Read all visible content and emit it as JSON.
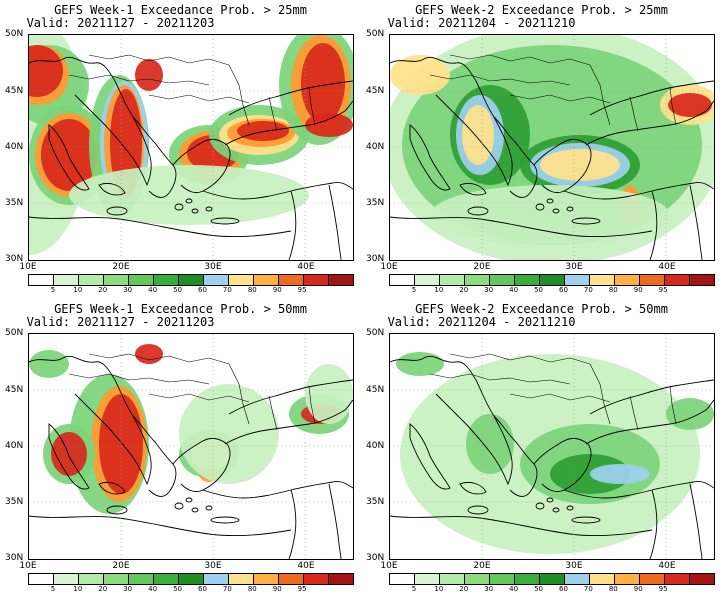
{
  "panels": [
    {
      "title": "GEFS Week-1 Exceedance Prob. > 25mm",
      "valid": "Valid: 20211127 - 20211203"
    },
    {
      "title": "GEFS Week-2 Exceedance Prob. > 25mm",
      "valid": "Valid: 20211204 - 20211210"
    },
    {
      "title": "GEFS Week-1 Exceedance Prob. > 50mm",
      "valid": "Valid: 20211127 - 20211203"
    },
    {
      "title": "GEFS Week-2 Exceedance Prob. > 50mm",
      "valid": "Valid: 20211204 - 20211210"
    }
  ],
  "axes": {
    "lat_labels": [
      "50N",
      "45N",
      "40N",
      "35N",
      "30N"
    ],
    "lon_labels": [
      "10E",
      "20E",
      "30E",
      "40E"
    ]
  },
  "colorbar": {
    "labels": [
      "5",
      "10",
      "20",
      "30",
      "40",
      "50",
      "60",
      "70",
      "80",
      "90",
      "95"
    ],
    "colors": [
      "#ffffff",
      "#d6f5d0",
      "#b4eaa8",
      "#8cdc7e",
      "#62c85a",
      "#3aae3a",
      "#1d8f25",
      "#9ed0f0",
      "#ffe28a",
      "#ffb040",
      "#f06a1e",
      "#d8281c",
      "#a41414"
    ]
  },
  "fills": {
    "green_light": "#c8f0c0",
    "green_mid": "#7cd47a",
    "green_dark": "#2e9e34",
    "blue": "#9ed0f0",
    "yellow": "#ffe28a",
    "orange": "#ff9a30",
    "red": "#d8281c",
    "dark_red": "#a41414"
  }
}
